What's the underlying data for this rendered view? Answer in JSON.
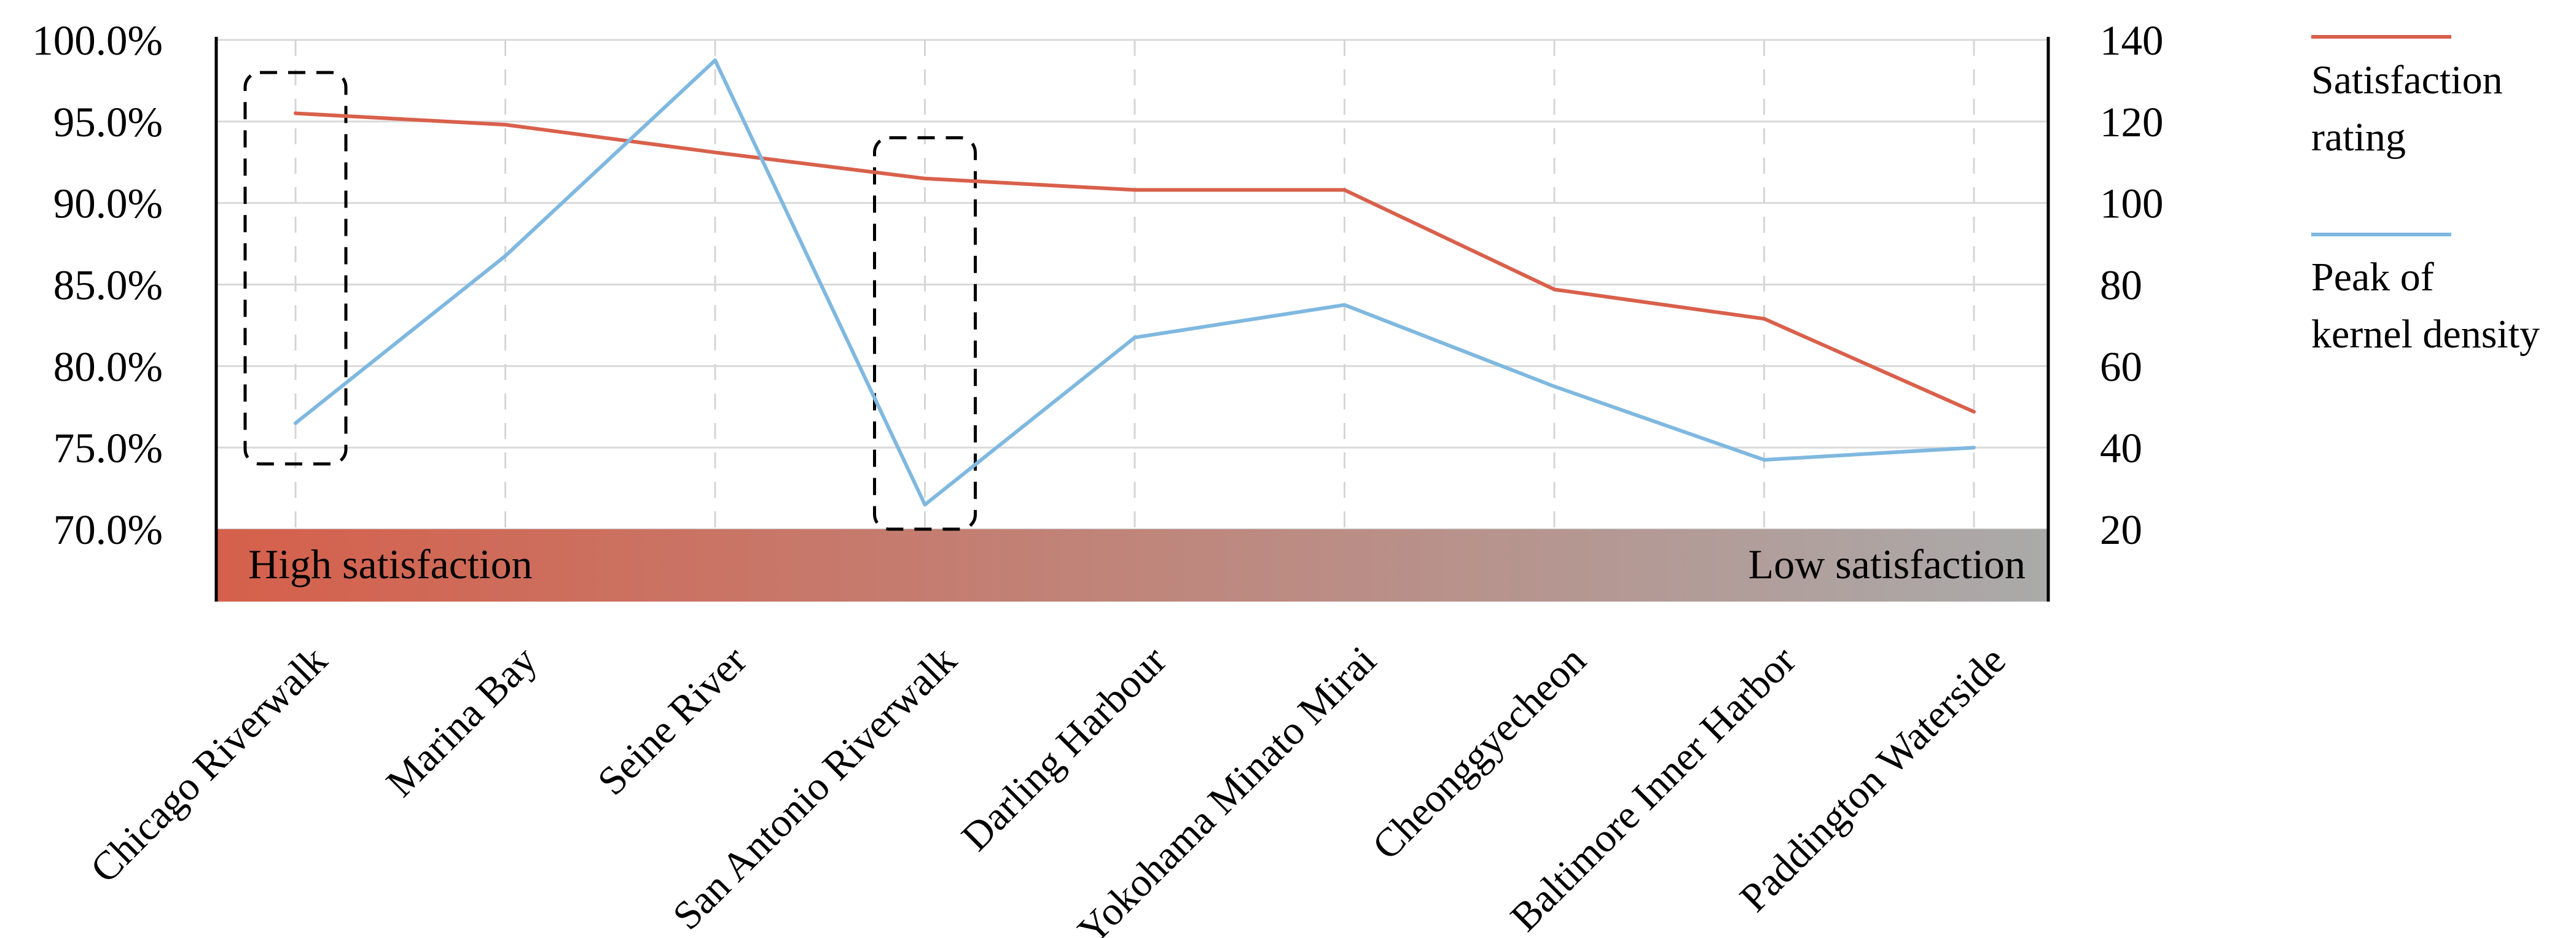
{
  "chart_data": {
    "type": "line",
    "title": "",
    "xlabel": "",
    "ylabel": "",
    "y2label": "",
    "grid": true,
    "legend_position": "right",
    "categories": [
      "Chicago Riverwalk",
      "Marina Bay",
      "Seine River",
      "San Antonio Riverwalk",
      "Darling Harbour",
      "Yokohama Minato Mirai",
      "Cheonggyecheon",
      "Baltimore Inner Harbor",
      "Paddington Waterside"
    ],
    "series": [
      {
        "name": "Satisfaction rating",
        "axis": "left",
        "color": "#d9604b",
        "values": [
          95.5,
          94.8,
          93.1,
          91.5,
          90.8,
          90.8,
          84.7,
          82.9,
          77.2
        ]
      },
      {
        "name": "Peak of kernel density",
        "axis": "right",
        "color": "#7fb8e0",
        "values": [
          46,
          87,
          135,
          26,
          67,
          75,
          55,
          37,
          40
        ]
      }
    ],
    "y_left": {
      "range": [
        70,
        100
      ],
      "ticks": [
        "70.0%",
        "75.0%",
        "80.0%",
        "85.0%",
        "90.0%",
        "95.0%",
        "100.0%"
      ]
    },
    "y_right": {
      "range": [
        20,
        140
      ],
      "ticks": [
        "20",
        "40",
        "60",
        "80",
        "100",
        "120",
        "140"
      ]
    },
    "band": {
      "left_label": "High satisfaction",
      "right_label": "Low satisfaction",
      "color_start": "#d5604b",
      "color_end": "#aaaaaa"
    },
    "highlights": [
      {
        "category": "Chicago Riverwalk",
        "from": 74.0,
        "to": 98.0
      },
      {
        "category": "San Antonio Riverwalk",
        "from": 70.0,
        "to": 94.0
      }
    ]
  }
}
